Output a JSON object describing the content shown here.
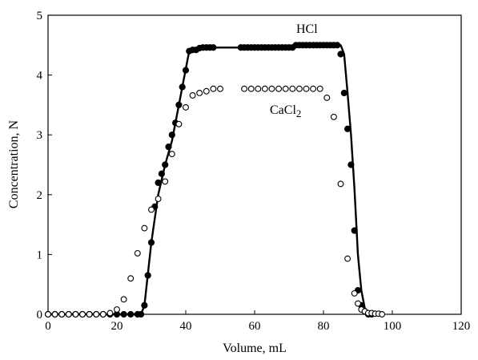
{
  "chart_data": {
    "type": "scatter",
    "title": "",
    "xlabel": "Volume, mL",
    "ylabel": "Concentration, N",
    "xlim": [
      0,
      120
    ],
    "ylim": [
      0,
      5
    ],
    "xticks": [
      "0",
      "20",
      "40",
      "60",
      "80",
      "100",
      "120"
    ],
    "yticks": [
      "0",
      "1",
      "2",
      "3",
      "4",
      "5"
    ],
    "grid": false,
    "legend": "none",
    "annotations": {
      "hcl": "HCl",
      "cacl2_base": "CaCl",
      "cacl2_sub": "2"
    },
    "series": [
      {
        "name": "HCl",
        "marker": "filled-circle",
        "color": "#000000",
        "x": [
          0,
          2,
          4,
          6,
          8,
          10,
          12,
          14,
          16,
          18,
          20,
          22,
          24,
          26,
          27,
          28,
          29,
          30,
          31,
          32,
          33,
          34,
          35,
          36,
          37,
          38,
          39,
          40,
          41,
          42,
          43,
          44,
          45,
          46,
          47,
          48,
          56,
          57,
          58,
          59,
          60,
          61,
          62,
          63,
          64,
          65,
          66,
          67,
          68,
          69,
          70,
          71,
          72,
          73,
          74,
          75,
          76,
          77,
          78,
          79,
          80,
          81,
          82,
          83,
          84,
          85,
          86,
          87,
          88,
          89,
          90,
          91,
          92,
          93,
          94
        ],
        "y": [
          0,
          0,
          0,
          0,
          0,
          0,
          0,
          0,
          0,
          0,
          0,
          0,
          0,
          0,
          0,
          0.15,
          0.65,
          1.2,
          1.8,
          2.2,
          2.35,
          2.5,
          2.8,
          3.0,
          3.2,
          3.5,
          3.8,
          4.08,
          4.4,
          4.42,
          4.42,
          4.45,
          4.46,
          4.46,
          4.46,
          4.46,
          4.46,
          4.46,
          4.46,
          4.46,
          4.46,
          4.46,
          4.46,
          4.46,
          4.46,
          4.46,
          4.46,
          4.46,
          4.46,
          4.46,
          4.46,
          4.46,
          4.5,
          4.5,
          4.5,
          4.5,
          4.5,
          4.5,
          4.5,
          4.5,
          4.5,
          4.5,
          4.5,
          4.5,
          4.5,
          4.35,
          3.7,
          3.1,
          2.5,
          1.4,
          0.4,
          0.15,
          0.05,
          0,
          0
        ]
      },
      {
        "name": "CaCl2",
        "marker": "open-circle",
        "color": "#000000",
        "x": [
          0,
          2,
          4,
          6,
          8,
          10,
          12,
          14,
          16,
          18,
          20,
          22,
          24,
          26,
          28,
          30,
          32,
          34,
          36,
          38,
          40,
          42,
          44,
          46,
          48,
          50,
          57,
          59,
          61,
          63,
          65,
          67,
          69,
          71,
          73,
          75,
          77,
          79,
          81,
          83,
          85,
          87,
          89,
          90,
          91,
          92,
          93,
          94,
          95,
          96,
          97
        ],
        "y": [
          0,
          0,
          0,
          0,
          0,
          0,
          0,
          0,
          0,
          0.02,
          0.08,
          0.25,
          0.6,
          1.02,
          1.44,
          1.75,
          1.93,
          2.22,
          2.68,
          3.18,
          3.46,
          3.66,
          3.7,
          3.73,
          3.77,
          3.77,
          3.77,
          3.77,
          3.77,
          3.77,
          3.77,
          3.77,
          3.77,
          3.77,
          3.77,
          3.77,
          3.77,
          3.77,
          3.62,
          3.3,
          2.18,
          0.93,
          0.35,
          0.18,
          0.08,
          0.05,
          0.02,
          0.02,
          0.01,
          0.01,
          0
        ]
      }
    ],
    "fit_line": {
      "name": "HCl fit",
      "x": [
        0,
        27,
        28,
        30,
        32,
        34,
        36,
        38,
        40,
        41,
        42,
        48,
        56,
        85,
        86,
        87,
        88,
        89,
        90,
        91,
        92,
        93,
        94,
        95
      ],
      "y": [
        0,
        0,
        0.15,
        1.2,
        2.0,
        2.5,
        2.9,
        3.5,
        4.1,
        4.4,
        4.42,
        4.46,
        4.46,
        4.5,
        4.35,
        3.7,
        3.0,
        2.1,
        1.0,
        0.4,
        0.1,
        0.02,
        0,
        0
      ]
    }
  }
}
